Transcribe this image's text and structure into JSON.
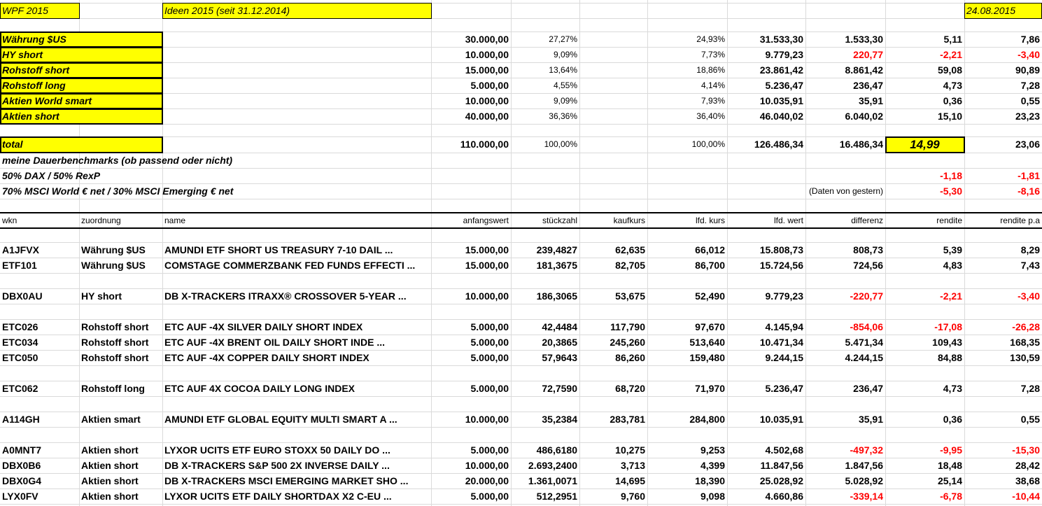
{
  "header": {
    "title": "WPF 2015",
    "subtitle": "Ideen 2015 (seit 31.12.2014)",
    "date": "24.08.2015"
  },
  "summary": [
    {
      "label": "Währung $US",
      "cells": [
        "30.000,00",
        "27,27%",
        "24,93%",
        "31.533,30",
        "1.533,30",
        "5,11",
        "7,86"
      ]
    },
    {
      "label": "HY short",
      "cells": [
        "10.000,00",
        "9,09%",
        "7,73%",
        "9.779,23",
        "220,77",
        "-2,21",
        "-3,40"
      ]
    },
    {
      "label": "Rohstoff short",
      "cells": [
        "15.000,00",
        "13,64%",
        "18,86%",
        "23.861,42",
        "8.861,42",
        "59,08",
        "90,89"
      ]
    },
    {
      "label": "Rohstoff long",
      "cells": [
        "5.000,00",
        "4,55%",
        "4,14%",
        "5.236,47",
        "236,47",
        "4,73",
        "7,28"
      ]
    },
    {
      "label": "Aktien World smart",
      "cells": [
        "10.000,00",
        "9,09%",
        "7,93%",
        "10.035,91",
        "35,91",
        "0,36",
        "0,55"
      ]
    },
    {
      "label": "Aktien short",
      "cells": [
        "40.000,00",
        "36,36%",
        "36,40%",
        "46.040,02",
        "6.040,02",
        "15,10",
        "23,23"
      ]
    }
  ],
  "total": {
    "label": "total",
    "cells": [
      "110.000,00",
      "100,00%",
      "100,00%",
      "126.486,34",
      "16.486,34",
      "14,99",
      "23,06"
    ]
  },
  "benchmarks": {
    "title": "meine Dauerbenchmarks (ob passend oder nicht)",
    "rows": [
      {
        "label": "50% DAX / 50% RexP",
        "cells": [
          "-1,18",
          "-1,81"
        ]
      },
      {
        "label": "70% MSCI World € net / 30% MSCI Emerging € net",
        "note": "(Daten von gestern)",
        "cells": [
          "-5,30",
          "-8,16"
        ]
      }
    ]
  },
  "table": {
    "columns": [
      "wkn",
      "zuordnung",
      "name",
      "anfangswert",
      "stückzahl",
      "kaufkurs",
      "lfd. kurs",
      "lfd. wert",
      "differenz",
      "rendite",
      "rendite p.a"
    ],
    "groups": [
      [
        [
          "A1JFVX",
          "Währung $US",
          "AMUNDI ETF SHORT US TREASURY 7-10 DAIL ...",
          "15.000,00",
          "239,4827",
          "62,635",
          "66,012",
          "15.808,73",
          "808,73",
          "5,39",
          "8,29"
        ],
        [
          "ETF101",
          "Währung $US",
          "COMSTAGE COMMERZBANK FED FUNDS EFFECTI ...",
          "15.000,00",
          "181,3675",
          "82,705",
          "86,700",
          "15.724,56",
          "724,56",
          "4,83",
          "7,43"
        ]
      ],
      [
        [
          "DBX0AU",
          "HY short",
          "DB X-TRACKERS ITRAXX® CROSSOVER 5-YEAR ...",
          "10.000,00",
          "186,3065",
          "53,675",
          "52,490",
          "9.779,23",
          "-220,77",
          "-2,21",
          "-3,40"
        ]
      ],
      [
        [
          "ETC026",
          "Rohstoff short",
          "ETC AUF -4X SILVER DAILY SHORT INDEX",
          "5.000,00",
          "42,4484",
          "117,790",
          "97,670",
          "4.145,94",
          "-854,06",
          "-17,08",
          "-26,28"
        ],
        [
          "ETC034",
          "Rohstoff short",
          "ETC AUF -4X BRENT OIL DAILY SHORT INDE ...",
          "5.000,00",
          "20,3865",
          "245,260",
          "513,640",
          "10.471,34",
          "5.471,34",
          "109,43",
          "168,35"
        ],
        [
          "ETC050",
          "Rohstoff short",
          "ETC AUF -4X COPPER DAILY SHORT INDEX",
          "5.000,00",
          "57,9643",
          "86,260",
          "159,480",
          "9.244,15",
          "4.244,15",
          "84,88",
          "130,59"
        ]
      ],
      [
        [
          "ETC062",
          "Rohstoff long",
          "ETC AUF 4X COCOA DAILY LONG INDEX",
          "5.000,00",
          "72,7590",
          "68,720",
          "71,970",
          "5.236,47",
          "236,47",
          "4,73",
          "7,28"
        ]
      ],
      [
        [
          "A114GH",
          "Aktien smart",
          "AMUNDI ETF GLOBAL EQUITY MULTI SMART A ...",
          "10.000,00",
          "35,2384",
          "283,781",
          "284,800",
          "10.035,91",
          "35,91",
          "0,36",
          "0,55"
        ]
      ],
      [
        [
          "A0MNT7",
          "Aktien short",
          "LYXOR UCITS ETF EURO STOXX 50 DAILY DO ...",
          "5.000,00",
          "486,6180",
          "10,275",
          "9,253",
          "4.502,68",
          "-497,32",
          "-9,95",
          "-15,30"
        ],
        [
          "DBX0B6",
          "Aktien short",
          "DB X-TRACKERS S&P 500 2X INVERSE DAILY ...",
          "10.000,00",
          "2.693,2400",
          "3,713",
          "4,399",
          "11.847,56",
          "1.847,56",
          "18,48",
          "28,42"
        ],
        [
          "DBX0G4",
          "Aktien short",
          "DB X-TRACKERS MSCI EMERGING MARKET SHO ...",
          "20.000,00",
          "1.361,0071",
          "14,695",
          "18,390",
          "25.028,92",
          "5.028,92",
          "25,14",
          "38,68"
        ],
        [
          "LYX0FV",
          "Aktien short",
          "LYXOR UCITS ETF DAILY SHORTDAX X2 C-EU ...",
          "5.000,00",
          "512,2951",
          "9,760",
          "9,098",
          "4.660,86",
          "-339,14",
          "-6,78",
          "-10,44"
        ]
      ]
    ]
  }
}
